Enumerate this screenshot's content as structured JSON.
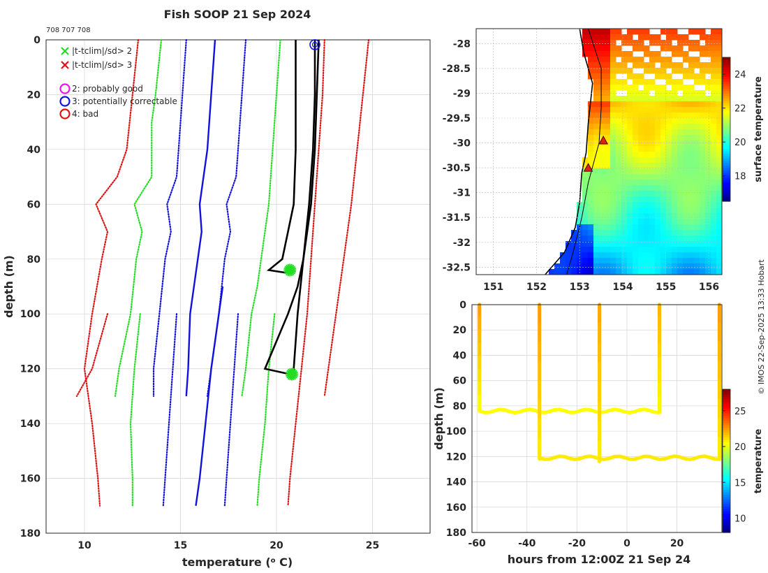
{
  "title": "Fish SOOP 21 Sep 2024",
  "profile_ids": "708 707 708",
  "credit": "© IMOS 22-Sep-2025 13:33 Hobart",
  "colors": {
    "sd2_green": "#22dd22",
    "sd3_red": "#dd1111",
    "clim_blue": "#1111dd",
    "probe_black": "#000000",
    "good_magenta": "#ee11ee"
  },
  "chart_data": [
    {
      "id": "profile",
      "type": "line",
      "xlabel": "temperature (",
      "xlabel_sup": "o",
      "xlabel_end": " C)",
      "ylabel": "depth (m)",
      "xlim": [
        8,
        28
      ],
      "ylim": [
        0,
        180
      ],
      "y_reversed": true,
      "xticks": [
        10,
        15,
        20,
        25
      ],
      "yticks": [
        0,
        20,
        40,
        60,
        80,
        100,
        120,
        140,
        160,
        180
      ],
      "legend": [
        {
          "symbol": "x",
          "color": "#22dd22",
          "label": "|t-tclim|/sd> 2"
        },
        {
          "symbol": "x",
          "color": "#dd1111",
          "label": "|t-tclim|/sd> 3"
        },
        {
          "symbol": "o",
          "color": "#ee11ee",
          "label": "2: probably good"
        },
        {
          "symbol": "o",
          "color": "#1111dd",
          "label": "3: potentially correctable"
        },
        {
          "symbol": "o",
          "color": "#dd1111",
          "label": "4: bad"
        }
      ],
      "series": [
        {
          "name": "clim-3sd-low",
          "style": "dotted",
          "color": "#dd1111",
          "depth": [
            0,
            20,
            40,
            50,
            60,
            70,
            80,
            100,
            120,
            140,
            160,
            170
          ],
          "temp": [
            12.8,
            12.5,
            12.2,
            11.7,
            10.6,
            11.2,
            10.9,
            10.4,
            10.0,
            10.4,
            10.7,
            10.8
          ]
        },
        {
          "name": "clim-3sd-low-2",
          "style": "dotted",
          "color": "#dd1111",
          "depth": [
            100,
            120,
            130
          ],
          "temp": [
            11.2,
            10.4,
            9.6
          ]
        },
        {
          "name": "clim-2sd-low",
          "style": "dotted",
          "color": "#22dd22",
          "depth": [
            0,
            20,
            30,
            50,
            60,
            70,
            80,
            100,
            120,
            130
          ],
          "temp": [
            14.0,
            13.7,
            13.5,
            13.5,
            12.6,
            13.0,
            12.7,
            12.4,
            11.8,
            11.6
          ]
        },
        {
          "name": "clim-2sd-low-2",
          "style": "dotted",
          "color": "#22dd22",
          "depth": [
            100,
            120,
            140,
            160,
            170
          ],
          "temp": [
            12.9,
            12.6,
            12.4,
            12.5,
            12.5
          ]
        },
        {
          "name": "clim-1sd-low",
          "style": "dotted",
          "color": "#1111dd",
          "depth": [
            0,
            20,
            40,
            50,
            60,
            70,
            80,
            100,
            120,
            130
          ],
          "temp": [
            15.3,
            15.1,
            14.9,
            14.8,
            14.3,
            14.5,
            14.2,
            13.9,
            13.6,
            13.6
          ]
        },
        {
          "name": "clim-1sd-low-2",
          "style": "dotted",
          "color": "#1111dd",
          "depth": [
            100,
            120,
            140,
            160,
            170
          ],
          "temp": [
            14.8,
            14.6,
            14.4,
            14.2,
            14.1
          ]
        },
        {
          "name": "clim-mean",
          "style": "solid",
          "color": "#1111dd",
          "depth": [
            0,
            20,
            40,
            60,
            70,
            80,
            90,
            100,
            120,
            130
          ],
          "temp": [
            16.8,
            16.6,
            16.4,
            16.0,
            16.1,
            15.9,
            15.7,
            15.5,
            15.4,
            15.3
          ]
        },
        {
          "name": "clim-mean-2",
          "style": "solid",
          "color": "#1111dd",
          "depth": [
            90,
            100,
            120,
            140,
            160,
            170
          ],
          "temp": [
            17.2,
            17.0,
            16.6,
            16.3,
            16.0,
            15.8
          ]
        },
        {
          "name": "clim-1sd-high",
          "style": "dotted",
          "color": "#1111dd",
          "depth": [
            0,
            20,
            40,
            50,
            60,
            70,
            80,
            100,
            120,
            130
          ],
          "temp": [
            18.4,
            18.2,
            18.0,
            17.9,
            17.4,
            17.6,
            17.3,
            17.0,
            16.6,
            16.4
          ]
        },
        {
          "name": "clim-1sd-high-2",
          "style": "dotted",
          "color": "#1111dd",
          "depth": [
            100,
            120,
            140,
            160,
            170
          ],
          "temp": [
            18.0,
            17.8,
            17.6,
            17.4,
            17.3
          ]
        },
        {
          "name": "clim-2sd-high",
          "style": "dotted",
          "color": "#22dd22",
          "depth": [
            0,
            20,
            40,
            60,
            70,
            80,
            90,
            100,
            120,
            130
          ],
          "temp": [
            20.2,
            20.0,
            19.8,
            19.6,
            19.4,
            19.2,
            19.0,
            18.7,
            18.4,
            18.2
          ]
        },
        {
          "name": "clim-2sd-high-2",
          "style": "dotted",
          "color": "#22dd22",
          "depth": [
            100,
            120,
            140,
            160,
            170
          ],
          "temp": [
            19.9,
            19.6,
            19.4,
            19.1,
            19.0
          ]
        },
        {
          "name": "clim-3sd-high",
          "style": "dotted",
          "color": "#dd1111",
          "depth": [
            0,
            20,
            40,
            60,
            80,
            100,
            120,
            140,
            160,
            170
          ],
          "temp": [
            22.5,
            22.4,
            22.2,
            22.0,
            21.8,
            21.6,
            21.3,
            21.0,
            20.7,
            20.6
          ]
        },
        {
          "name": "clim-3sd-high-2",
          "style": "dotted",
          "color": "#dd1111",
          "depth": [
            0,
            20,
            40,
            60,
            80,
            100,
            120,
            130
          ],
          "temp": [
            24.8,
            24.5,
            24.2,
            23.9,
            23.5,
            23.1,
            22.7,
            22.5
          ]
        },
        {
          "name": "probe-708a",
          "style": "solid",
          "color": "#000000",
          "depth": [
            0,
            20,
            40,
            60,
            70,
            80,
            84,
            85
          ],
          "temp": [
            21.0,
            21.0,
            21.0,
            20.9,
            20.6,
            20.3,
            19.6,
            20.5
          ]
        },
        {
          "name": "probe-707",
          "style": "solid",
          "color": "#000000",
          "depth": [
            0,
            20,
            40,
            60,
            80,
            90,
            100,
            110,
            120,
            122
          ],
          "temp": [
            22.0,
            22.0,
            21.9,
            21.7,
            21.4,
            21.1,
            20.6,
            20.0,
            19.4,
            20.7
          ]
        },
        {
          "name": "probe-708b",
          "style": "solid",
          "color": "#000000",
          "depth": [
            0,
            20,
            40,
            60,
            80,
            100,
            120,
            122
          ],
          "temp": [
            22.2,
            22.1,
            22.0,
            21.8,
            21.4,
            21.1,
            20.9,
            20.9
          ]
        }
      ],
      "flags_sd2": [
        {
          "depth": 84,
          "temp": 20.7
        },
        {
          "depth": 122,
          "temp": 20.8
        }
      ],
      "flags_qc3": [
        {
          "depth": 1,
          "temp": 22.0
        }
      ]
    },
    {
      "id": "map",
      "type": "heatmap",
      "xlim": [
        150.6,
        156.3
      ],
      "ylim": [
        -32.65,
        -27.7
      ],
      "xticks": [
        151,
        152,
        153,
        154,
        155,
        156
      ],
      "xtick_labels": [
        "151",
        "152",
        "153",
        "154",
        "155",
        "156"
      ],
      "yticks": [
        -28,
        -28.5,
        -29,
        -29.5,
        -30,
        -30.5,
        -31,
        -31.5,
        -32,
        -32.5
      ],
      "ytick_labels": [
        "-28",
        "-28.5",
        "-29",
        "-29.5",
        "-30",
        "-30.5",
        "-31",
        "-31.5",
        "-32",
        "-32.5"
      ],
      "colorbar_label": "surface temperature",
      "colorbar_range": [
        16.5,
        25
      ],
      "colorbar_ticks": [
        18,
        20,
        22,
        24
      ],
      "stations": [
        {
          "lon": 153.2,
          "lat": -30.5
        },
        {
          "lon": 153.55,
          "lat": -29.95
        }
      ],
      "coast": [
        {
          "lon": 153.0,
          "lat": -27.7
        },
        {
          "lon": 153.1,
          "lat": -28.2
        },
        {
          "lon": 153.3,
          "lat": -28.8
        },
        {
          "lon": 153.2,
          "lat": -29.6
        },
        {
          "lon": 153.15,
          "lat": -30.2
        },
        {
          "lon": 153.05,
          "lat": -30.6
        },
        {
          "lon": 153.0,
          "lat": -31.2
        },
        {
          "lon": 152.9,
          "lat": -31.7
        },
        {
          "lon": 152.65,
          "lat": -32.2
        },
        {
          "lon": 152.2,
          "lat": -32.65
        }
      ],
      "isobath": [
        {
          "lon": 153.2,
          "lat": -27.7
        },
        {
          "lon": 153.5,
          "lat": -28.5
        },
        {
          "lon": 153.5,
          "lat": -29.3
        },
        {
          "lon": 153.45,
          "lat": -30.0
        },
        {
          "lon": 153.2,
          "lat": -30.8
        },
        {
          "lon": 153.05,
          "lat": -31.5
        },
        {
          "lon": 152.85,
          "lat": -32.2
        },
        {
          "lon": 152.7,
          "lat": -32.65
        }
      ]
    },
    {
      "id": "timeseries",
      "type": "scatter",
      "xlabel": "hours from 12:00Z 21 Sep 24",
      "ylabel": "depth (m)",
      "xlim": [
        -62,
        38
      ],
      "ylim": [
        0,
        180
      ],
      "y_reversed": true,
      "xticks": [
        -60,
        -40,
        -20,
        0,
        20
      ],
      "yticks": [
        0,
        20,
        40,
        60,
        80,
        100,
        120,
        140,
        160,
        180
      ],
      "colorbar_label": "temperature",
      "colorbar_range": [
        8,
        28
      ],
      "colorbar_ticks": [
        10,
        15,
        20,
        25
      ],
      "drops": [
        {
          "hour": -59,
          "max_depth": 83,
          "surface_temp": 22.5,
          "bottom_temp": 20.5
        },
        {
          "hour": -35,
          "max_depth": 122,
          "surface_temp": 22.5,
          "bottom_temp": 20.8
        },
        {
          "hour": -11,
          "max_depth": 124,
          "surface_temp": 22.3,
          "bottom_temp": 20.8
        },
        {
          "hour": 13,
          "max_depth": 84,
          "surface_temp": 22.0,
          "bottom_temp": 20.6
        },
        {
          "hour": 37,
          "max_depth": 121,
          "surface_temp": 22.5,
          "bottom_temp": 20.8
        }
      ],
      "tows": [
        {
          "from_hour": -59,
          "to_hour": 13,
          "depth": 84,
          "temp": 20.5
        },
        {
          "from_hour": -35,
          "to_hour": 37,
          "depth": 121,
          "temp": 20.9
        }
      ]
    }
  ]
}
